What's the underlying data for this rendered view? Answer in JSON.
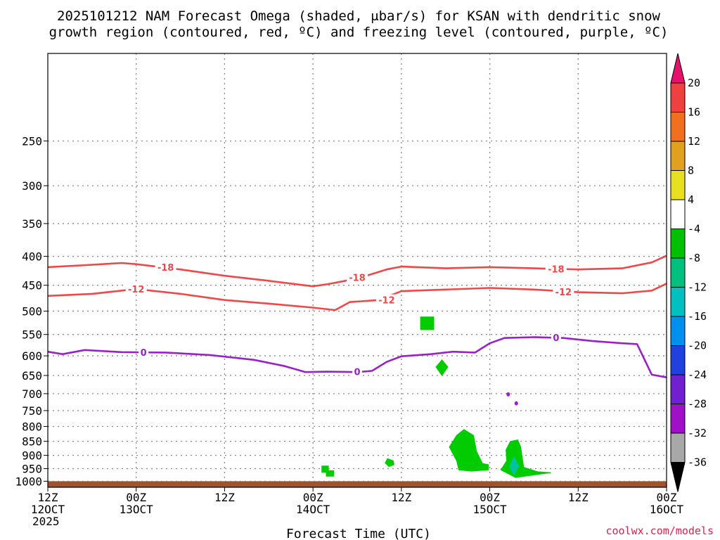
{
  "chart_data": {
    "type": "time-height cross-section",
    "title_line1": "2025101212 NAM Forecast Omega (shaded, μbar/s) for KSAN with dendritic snow",
    "title_line2": "growth region (contoured, red, ºC) and freezing level (contoured, purple, ºC)",
    "xlabel": "Forecast Time (UTC)",
    "credit": "coolwx.com/models",
    "xlim_hours": [
      0,
      84
    ],
    "ylim_hPa": [
      1025,
      175
    ],
    "x_ticks": [
      {
        "h": 0,
        "line1": "12Z",
        "line2": "12OCT",
        "line3": "2025"
      },
      {
        "h": 12,
        "line1": "00Z",
        "line2": "13OCT",
        "line3": ""
      },
      {
        "h": 24,
        "line1": "12Z",
        "line2": "",
        "line3": ""
      },
      {
        "h": 36,
        "line1": "00Z",
        "line2": "14OCT",
        "line3": ""
      },
      {
        "h": 48,
        "line1": "12Z",
        "line2": "",
        "line3": ""
      },
      {
        "h": 60,
        "line1": "00Z",
        "line2": "15OCT",
        "line3": ""
      },
      {
        "h": 72,
        "line1": "12Z",
        "line2": "",
        "line3": ""
      },
      {
        "h": 84,
        "line1": "00Z",
        "line2": "16OCT",
        "line3": ""
      }
    ],
    "y_ticks": [
      {
        "p": 250,
        "label": "250"
      },
      {
        "p": 300,
        "label": "300"
      },
      {
        "p": 350,
        "label": "350"
      },
      {
        "p": 400,
        "label": "400"
      },
      {
        "p": 450,
        "label": "450"
      },
      {
        "p": 500,
        "label": "500"
      },
      {
        "p": 550,
        "label": "550"
      },
      {
        "p": 600,
        "label": "600"
      },
      {
        "p": 650,
        "label": "650"
      },
      {
        "p": 700,
        "label": "700"
      },
      {
        "p": 750,
        "label": "750"
      },
      {
        "p": 800,
        "label": "800"
      },
      {
        "p": 850,
        "label": "850"
      },
      {
        "p": 900,
        "label": "900"
      },
      {
        "p": 950,
        "label": "950"
      },
      {
        "p": 1000,
        "label": "1000"
      }
    ],
    "contours": [
      {
        "name": "minus-18",
        "label": "-18",
        "color": "#f04848",
        "points": [
          [
            0,
            418
          ],
          [
            6,
            414
          ],
          [
            10,
            411
          ],
          [
            12,
            413
          ],
          [
            18,
            422
          ],
          [
            24,
            433
          ],
          [
            30,
            442
          ],
          [
            36,
            452
          ],
          [
            38,
            448
          ],
          [
            42,
            438
          ],
          [
            46,
            422
          ],
          [
            48,
            417
          ],
          [
            54,
            420
          ],
          [
            60,
            418
          ],
          [
            66,
            420
          ],
          [
            72,
            422
          ],
          [
            78,
            420
          ],
          [
            82,
            410
          ],
          [
            84,
            399
          ]
        ],
        "labels": [
          [
            16,
            418
          ],
          [
            42,
            436
          ],
          [
            69,
            421
          ]
        ]
      },
      {
        "name": "minus-12",
        "label": "-12",
        "color": "#f04848",
        "points": [
          [
            0,
            470
          ],
          [
            6,
            466
          ],
          [
            12,
            457
          ],
          [
            18,
            466
          ],
          [
            24,
            478
          ],
          [
            30,
            485
          ],
          [
            36,
            493
          ],
          [
            39,
            498
          ],
          [
            41,
            482
          ],
          [
            45,
            478
          ],
          [
            48,
            461
          ],
          [
            54,
            458
          ],
          [
            60,
            455
          ],
          [
            66,
            458
          ],
          [
            72,
            463
          ],
          [
            78,
            465
          ],
          [
            82,
            460
          ],
          [
            84,
            447
          ]
        ],
        "labels": [
          [
            12,
            457
          ],
          [
            46,
            478
          ],
          [
            70,
            462
          ]
        ]
      },
      {
        "name": "freezing-level",
        "label": "0",
        "color": "#9a20c8",
        "points": [
          [
            0,
            590
          ],
          [
            2,
            596
          ],
          [
            5,
            586
          ],
          [
            10,
            591
          ],
          [
            16,
            592
          ],
          [
            22,
            598
          ],
          [
            28,
            610
          ],
          [
            32,
            625
          ],
          [
            35,
            641
          ],
          [
            38,
            640
          ],
          [
            42,
            641
          ],
          [
            44,
            638
          ],
          [
            46,
            615
          ],
          [
            48,
            601
          ],
          [
            52,
            596
          ],
          [
            55,
            590
          ],
          [
            58,
            592
          ],
          [
            60,
            570
          ],
          [
            62,
            558
          ],
          [
            66,
            556
          ],
          [
            70,
            558
          ],
          [
            74,
            565
          ],
          [
            78,
            570
          ],
          [
            80,
            572
          ],
          [
            82,
            648
          ],
          [
            84,
            655
          ]
        ],
        "labels": [
          [
            13,
            591
          ],
          [
            42,
            640
          ],
          [
            69,
            557
          ]
        ]
      }
    ],
    "omega_shading": [
      {
        "name": "omega-blob-1",
        "color": "#00cc00",
        "points": [
          [
            50.6,
            512
          ],
          [
            52.4,
            512
          ],
          [
            52.4,
            539
          ],
          [
            50.6,
            539
          ]
        ]
      },
      {
        "name": "omega-blob-2",
        "color": "#00cc00",
        "points": [
          [
            53.5,
            610
          ],
          [
            54.3,
            628
          ],
          [
            53.5,
            650
          ],
          [
            52.7,
            628
          ]
        ]
      },
      {
        "name": "omega-blob-3",
        "color": "#00cc00",
        "points": [
          [
            55.5,
            830
          ],
          [
            56.5,
            810
          ],
          [
            57.8,
            830
          ],
          [
            58.2,
            885
          ],
          [
            59,
            930
          ],
          [
            59.8,
            935
          ],
          [
            59.8,
            955
          ],
          [
            57.5,
            960
          ],
          [
            55.8,
            955
          ],
          [
            55.5,
            920
          ],
          [
            54.5,
            870
          ]
        ]
      },
      {
        "name": "omega-blob-4",
        "color": "#00cc00",
        "points": [
          [
            62.8,
            850
          ],
          [
            63.8,
            845
          ],
          [
            64.2,
            870
          ],
          [
            64.6,
            945
          ],
          [
            66.5,
            962
          ],
          [
            68.3,
            966
          ],
          [
            66,
            975
          ],
          [
            63.5,
            985
          ],
          [
            62.5,
            970
          ],
          [
            61.5,
            955
          ],
          [
            62.3,
            920
          ],
          [
            62.2,
            880
          ]
        ]
      },
      {
        "name": "omega-blob-5",
        "color": "#00c4a0",
        "points": [
          [
            63.3,
            905
          ],
          [
            63.9,
            940
          ],
          [
            63.3,
            975
          ],
          [
            62.7,
            940
          ]
        ]
      },
      {
        "name": "omega-blob-6",
        "color": "#00cc00",
        "points": [
          [
            46.1,
            912
          ],
          [
            46.9,
            920
          ],
          [
            47,
            935
          ],
          [
            46.3,
            942
          ],
          [
            45.8,
            928
          ]
        ]
      },
      {
        "name": "omega-blob-7",
        "color": "#00cc00",
        "points": [
          [
            37.2,
            940
          ],
          [
            38.1,
            940
          ],
          [
            38.1,
            965
          ],
          [
            37.2,
            965
          ]
        ]
      },
      {
        "name": "omega-blob-8",
        "color": "#00cc00",
        "points": [
          [
            37.8,
            958
          ],
          [
            38.8,
            958
          ],
          [
            38.8,
            980
          ],
          [
            37.8,
            980
          ]
        ]
      }
    ],
    "omega_specks": [
      {
        "name": "omega-speck-1",
        "color": "#9a20c8",
        "h": 62.5,
        "p": 702
      },
      {
        "name": "omega-speck-2",
        "color": "#9a20c8",
        "h": 63.6,
        "p": 728
      }
    ],
    "ground": {
      "color": "#a0522d",
      "top_hPa": 1000
    },
    "colorbar": {
      "levels": [
        "20",
        "16",
        "12",
        "8",
        "4",
        "-4",
        "-8",
        "-12",
        "-16",
        "-20",
        "-24",
        "-28",
        "-32",
        "-36"
      ],
      "colors": [
        "#e8106e",
        "#f04040",
        "#f07020",
        "#e0a020",
        "#e8e020",
        "#ffffff",
        "#00c000",
        "#00c080",
        "#00c0c0",
        "#0090f0",
        "#2040e0",
        "#7020d0",
        "#a010c8",
        "#a8a8a8",
        "#000000"
      ]
    }
  }
}
